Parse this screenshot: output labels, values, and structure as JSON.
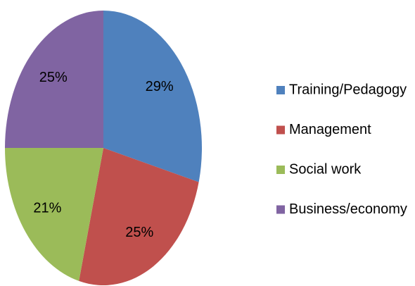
{
  "chart_data": {
    "type": "pie",
    "categories": [
      "Training/Pedagogy",
      "Management",
      "Social work",
      "Business/economy"
    ],
    "values": [
      29,
      25,
      21,
      25
    ],
    "value_labels": [
      "29%",
      "25%",
      "21%",
      "25%"
    ],
    "colors": [
      "#4f81bd",
      "#c0504d",
      "#9bbb59",
      "#8064a2"
    ],
    "legend": "right"
  }
}
